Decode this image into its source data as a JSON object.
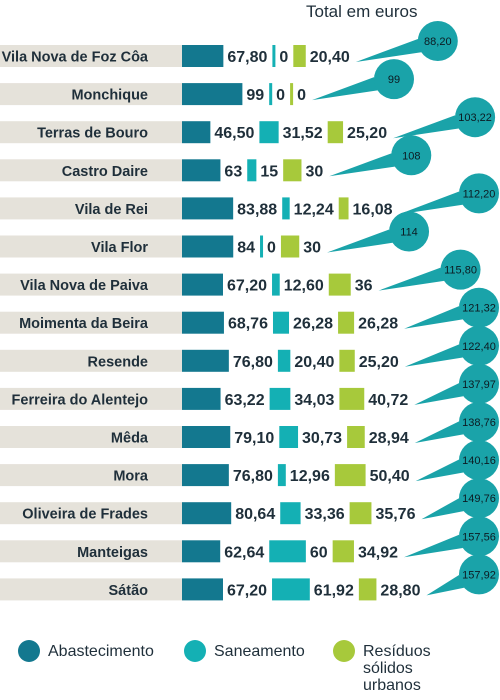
{
  "header": {
    "title": "Total em euros"
  },
  "colors": {
    "abastecimento": "#13788f",
    "saneamento": "#14b0b4",
    "residuos": "#a7c93b",
    "total_bubble": "#1aa3a9",
    "row_background": "#e5e2da",
    "text": "#1f2f3a"
  },
  "legend": {
    "items": [
      {
        "label": "Abastecimento",
        "color": "#13788f"
      },
      {
        "label": "Saneamento",
        "color": "#14b0b4"
      },
      {
        "label": "Resíduos sólidos urbanos",
        "color": "#a7c93b"
      }
    ]
  },
  "chart_data": {
    "type": "bar",
    "stacked": true,
    "orientation": "horizontal",
    "title": "Total em euros",
    "categories": [
      "Vila Nova de Foz Côa",
      "Monchique",
      "Terras de Bouro",
      "Castro Daire",
      "Vila de Rei",
      "Vila Flor",
      "Vila Nova de Paiva",
      "Moimenta da Beira",
      "Resende",
      "Ferreira do Alentejo",
      "Mêda",
      "Mora",
      "Oliveira de Frades",
      "Manteigas",
      "Sátão"
    ],
    "series": [
      {
        "name": "Abastecimento",
        "values": [
          67.8,
          99,
          46.5,
          63,
          83.88,
          84,
          67.2,
          68.76,
          76.8,
          63.22,
          79.1,
          76.8,
          80.64,
          62.64,
          67.2
        ],
        "labels": [
          "67,80",
          "99",
          "46,50",
          "63",
          "83,88",
          "84",
          "67,20",
          "68,76",
          "76,80",
          "63,22",
          "79,10",
          "76,80",
          "80,64",
          "62,64",
          "67,20"
        ]
      },
      {
        "name": "Saneamento",
        "values": [
          0,
          0,
          31.52,
          15,
          12.24,
          0,
          12.6,
          26.28,
          20.4,
          34.03,
          30.73,
          12.96,
          33.36,
          60,
          61.92
        ],
        "labels": [
          "0",
          "0",
          "31,52",
          "15",
          "12,24",
          "0",
          "12,60",
          "26,28",
          "20,40",
          "34,03",
          "30,73",
          "12,96",
          "33,36",
          "60",
          "61,92"
        ]
      },
      {
        "name": "Resíduos sólidos urbanos",
        "values": [
          20.4,
          0,
          25.2,
          30,
          16.08,
          30,
          36,
          26.28,
          25.2,
          40.72,
          28.94,
          50.4,
          35.76,
          34.92,
          28.8
        ],
        "labels": [
          "20,40",
          "0",
          "25,20",
          "30",
          "16,08",
          "30",
          "36",
          "26,28",
          "25,20",
          "40,72",
          "28,94",
          "50,40",
          "35,76",
          "34,92",
          "28,80"
        ]
      }
    ],
    "totals": [
      88.2,
      99,
      103.22,
      108,
      112.2,
      114,
      115.8,
      121.32,
      122.4,
      137.97,
      138.76,
      140.16,
      149.76,
      157.56,
      157.92
    ],
    "total_labels": [
      "88,20",
      "99",
      "103,22",
      "108",
      "112,20",
      "114",
      "115,80",
      "121,32",
      "122,40",
      "137,97",
      "138,76",
      "140,16",
      "149,76",
      "157,56",
      "157,92"
    ]
  }
}
